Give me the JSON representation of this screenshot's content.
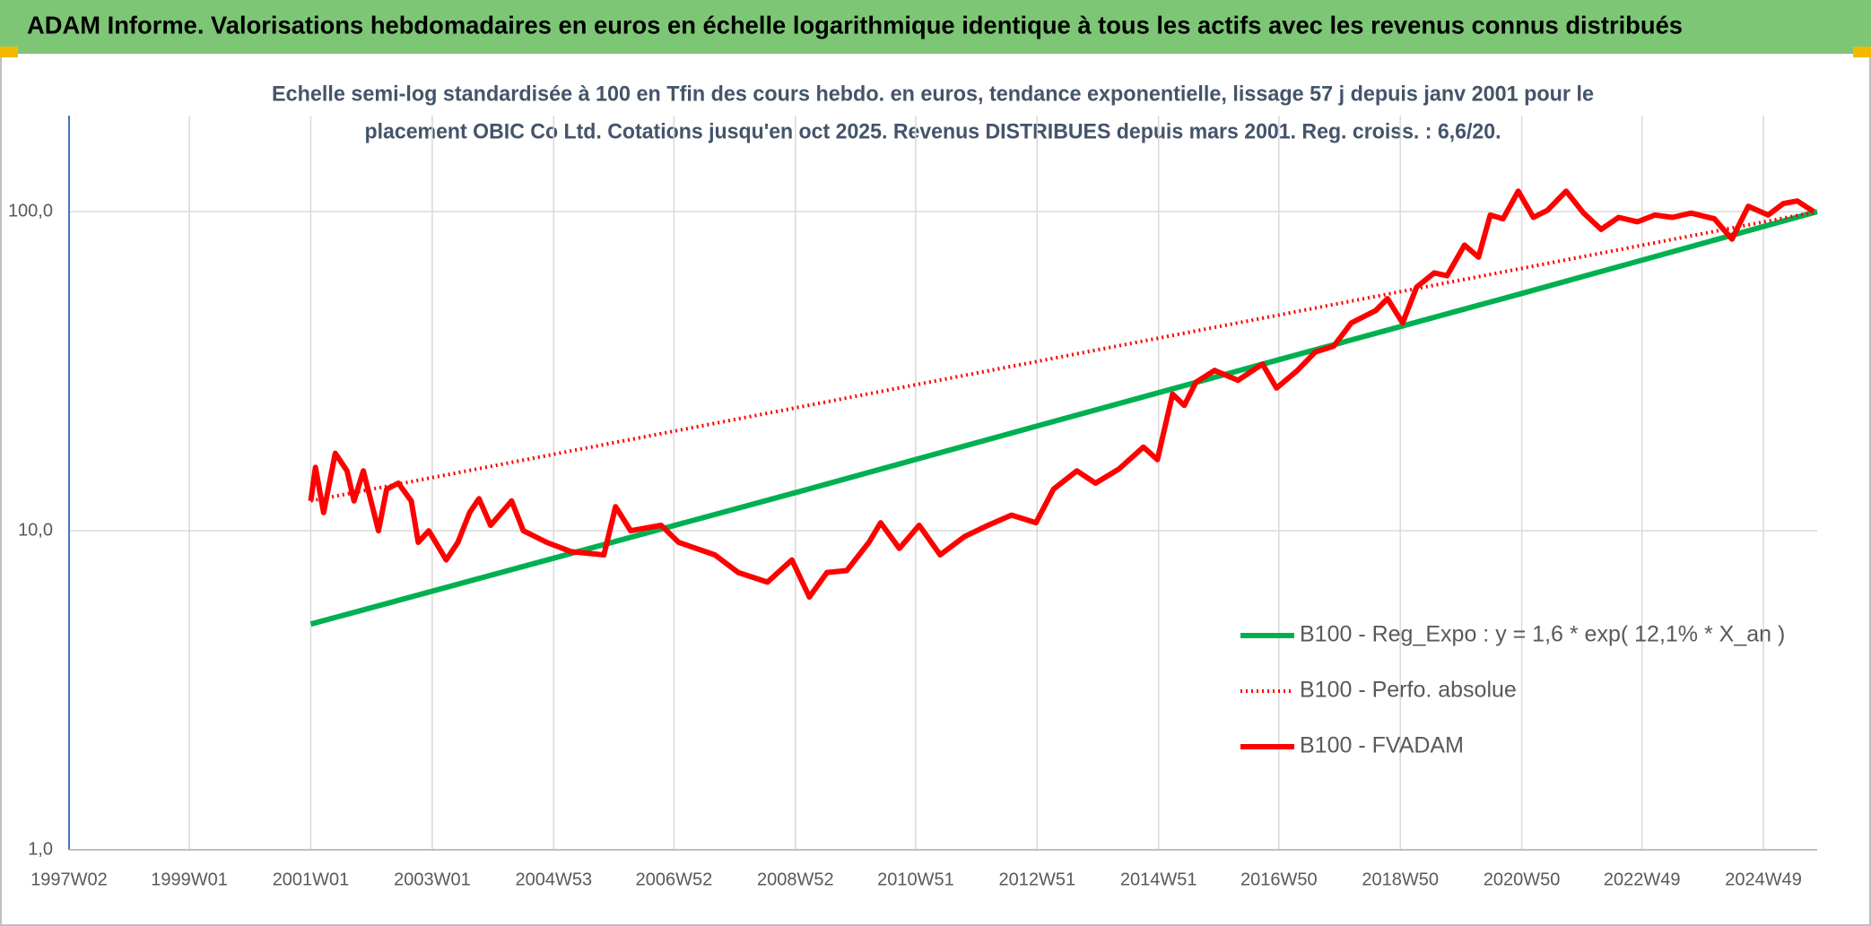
{
  "chart_data": {
    "type": "line",
    "title": "ADAM Informe. Valorisations hebdomadaires en euros en échelle logarithmique identique à tous les actifs avec les revenus connus distribués",
    "subtitle": [
      "Echelle semi-log standardisée à 100 en Tfin des cours hebdo. en euros, tendance exponentielle, lissage 57 j depuis janv 2001 pour le",
      "placement OBIC Co Ltd. Cotations jusqu'en oct 2025. Revenus DISTRIBUES depuis mars 2001. Reg. croiss. : 6,6/20."
    ],
    "xlim": [
      "1997W02",
      "2025W43"
    ],
    "xticks": [
      "1997W02",
      "1999W01",
      "2001W01",
      "2003W01",
      "2004W53",
      "2006W52",
      "2008W52",
      "2010W51",
      "2012W51",
      "2014W51",
      "2016W50",
      "2018W50",
      "2020W50",
      "2022W49",
      "2024W49"
    ],
    "ylim": [
      1,
      200
    ],
    "yticks": [
      {
        "value": 1,
        "label": "1,0"
      },
      {
        "value": 10,
        "label": "10,0"
      },
      {
        "value": 100,
        "label": "100,0"
      }
    ],
    "log_y": true,
    "grid": true,
    "legend_position": "right",
    "series": [
      {
        "name": "B100 - Reg_Expo : y = 1,6 * exp( 12,1% *  X_an )",
        "color": "#00b050",
        "style": "solid",
        "x": [
          "2001W01",
          "2005W01",
          "2009W01",
          "2013W01",
          "2017W01",
          "2021W01",
          "2025W43"
        ],
        "values": [
          5.1,
          8.2,
          13.2,
          21.4,
          34.6,
          55.8,
          100
        ]
      },
      {
        "name": "B100 - Perfo. absolue",
        "color": "#ff0000",
        "style": "dotted",
        "x": [
          "2001W01",
          "2025W43"
        ],
        "values": [
          12.4,
          100
        ]
      },
      {
        "name": "B100 - FVADAM",
        "color": "#ff0000",
        "style": "solid",
        "x": [
          "2001W01",
          "2001W05",
          "2001W12",
          "2001W22",
          "2001W32",
          "2001W38",
          "2001W46",
          "2002W07",
          "2002W14",
          "2002W24",
          "2002W35",
          "2002W41",
          "2002W50",
          "2003W13",
          "2003W23",
          "2003W33",
          "2003W41",
          "2003W51",
          "2004W17",
          "2004W27",
          "2004W47",
          "2005W16",
          "2005W44",
          "2006W02",
          "2006W15",
          "2006W41",
          "2007W04",
          "2007W35",
          "2008W03",
          "2008W28",
          "2008W49",
          "2009W12",
          "2009W27",
          "2009W44",
          "2010W11",
          "2010W21",
          "2010W37",
          "2011W02",
          "2011W20",
          "2011W41",
          "2012W09",
          "2012W29",
          "2012W50",
          "2013W13",
          "2013W33",
          "2013W49",
          "2014W17",
          "2014W38",
          "2014W50",
          "2015W11",
          "2015W21",
          "2015W31",
          "2015W47",
          "2016W15",
          "2016W36",
          "2016W48",
          "2017W14",
          "2017W29",
          "2017W45",
          "2018W08",
          "2018W29",
          "2018W39",
          "2018W52",
          "2019W12",
          "2019W27",
          "2019W38",
          "2020W01",
          "2020W13",
          "2020W23",
          "2020W34",
          "2020W47",
          "2021W08",
          "2021W20",
          "2021W36",
          "2021W51",
          "2022W14",
          "2022W29",
          "2022W45",
          "2023W08",
          "2023W23",
          "2023W39",
          "2024W07",
          "2024W22",
          "2024W36",
          "2025W01",
          "2025W14",
          "2025W26",
          "2025W40"
        ],
        "values": [
          12.4,
          15.8,
          11.4,
          17.5,
          15.4,
          12.4,
          15.4,
          10.0,
          13.5,
          14.1,
          12.4,
          9.2,
          10.0,
          8.1,
          9.2,
          11.4,
          12.6,
          10.4,
          12.4,
          10.0,
          9.2,
          8.6,
          8.4,
          11.9,
          10.0,
          10.4,
          9.2,
          8.4,
          7.4,
          6.9,
          8.1,
          6.2,
          7.4,
          7.5,
          9.2,
          10.6,
          8.8,
          10.4,
          8.4,
          9.6,
          10.4,
          11.2,
          10.6,
          13.5,
          15.4,
          14.1,
          15.6,
          18.3,
          16.7,
          26.8,
          24.7,
          29.2,
          31.8,
          29.6,
          33.3,
          28.0,
          31.8,
          36.3,
          37.9,
          44.8,
          49,
          53.4,
          44.8,
          58,
          64.3,
          63,
          78.6,
          72,
          97.6,
          95,
          116,
          96,
          101,
          116,
          99,
          88,
          96,
          93,
          97.6,
          96,
          99,
          95,
          82,
          104,
          97.6,
          106,
          108,
          100
        ]
      }
    ]
  }
}
